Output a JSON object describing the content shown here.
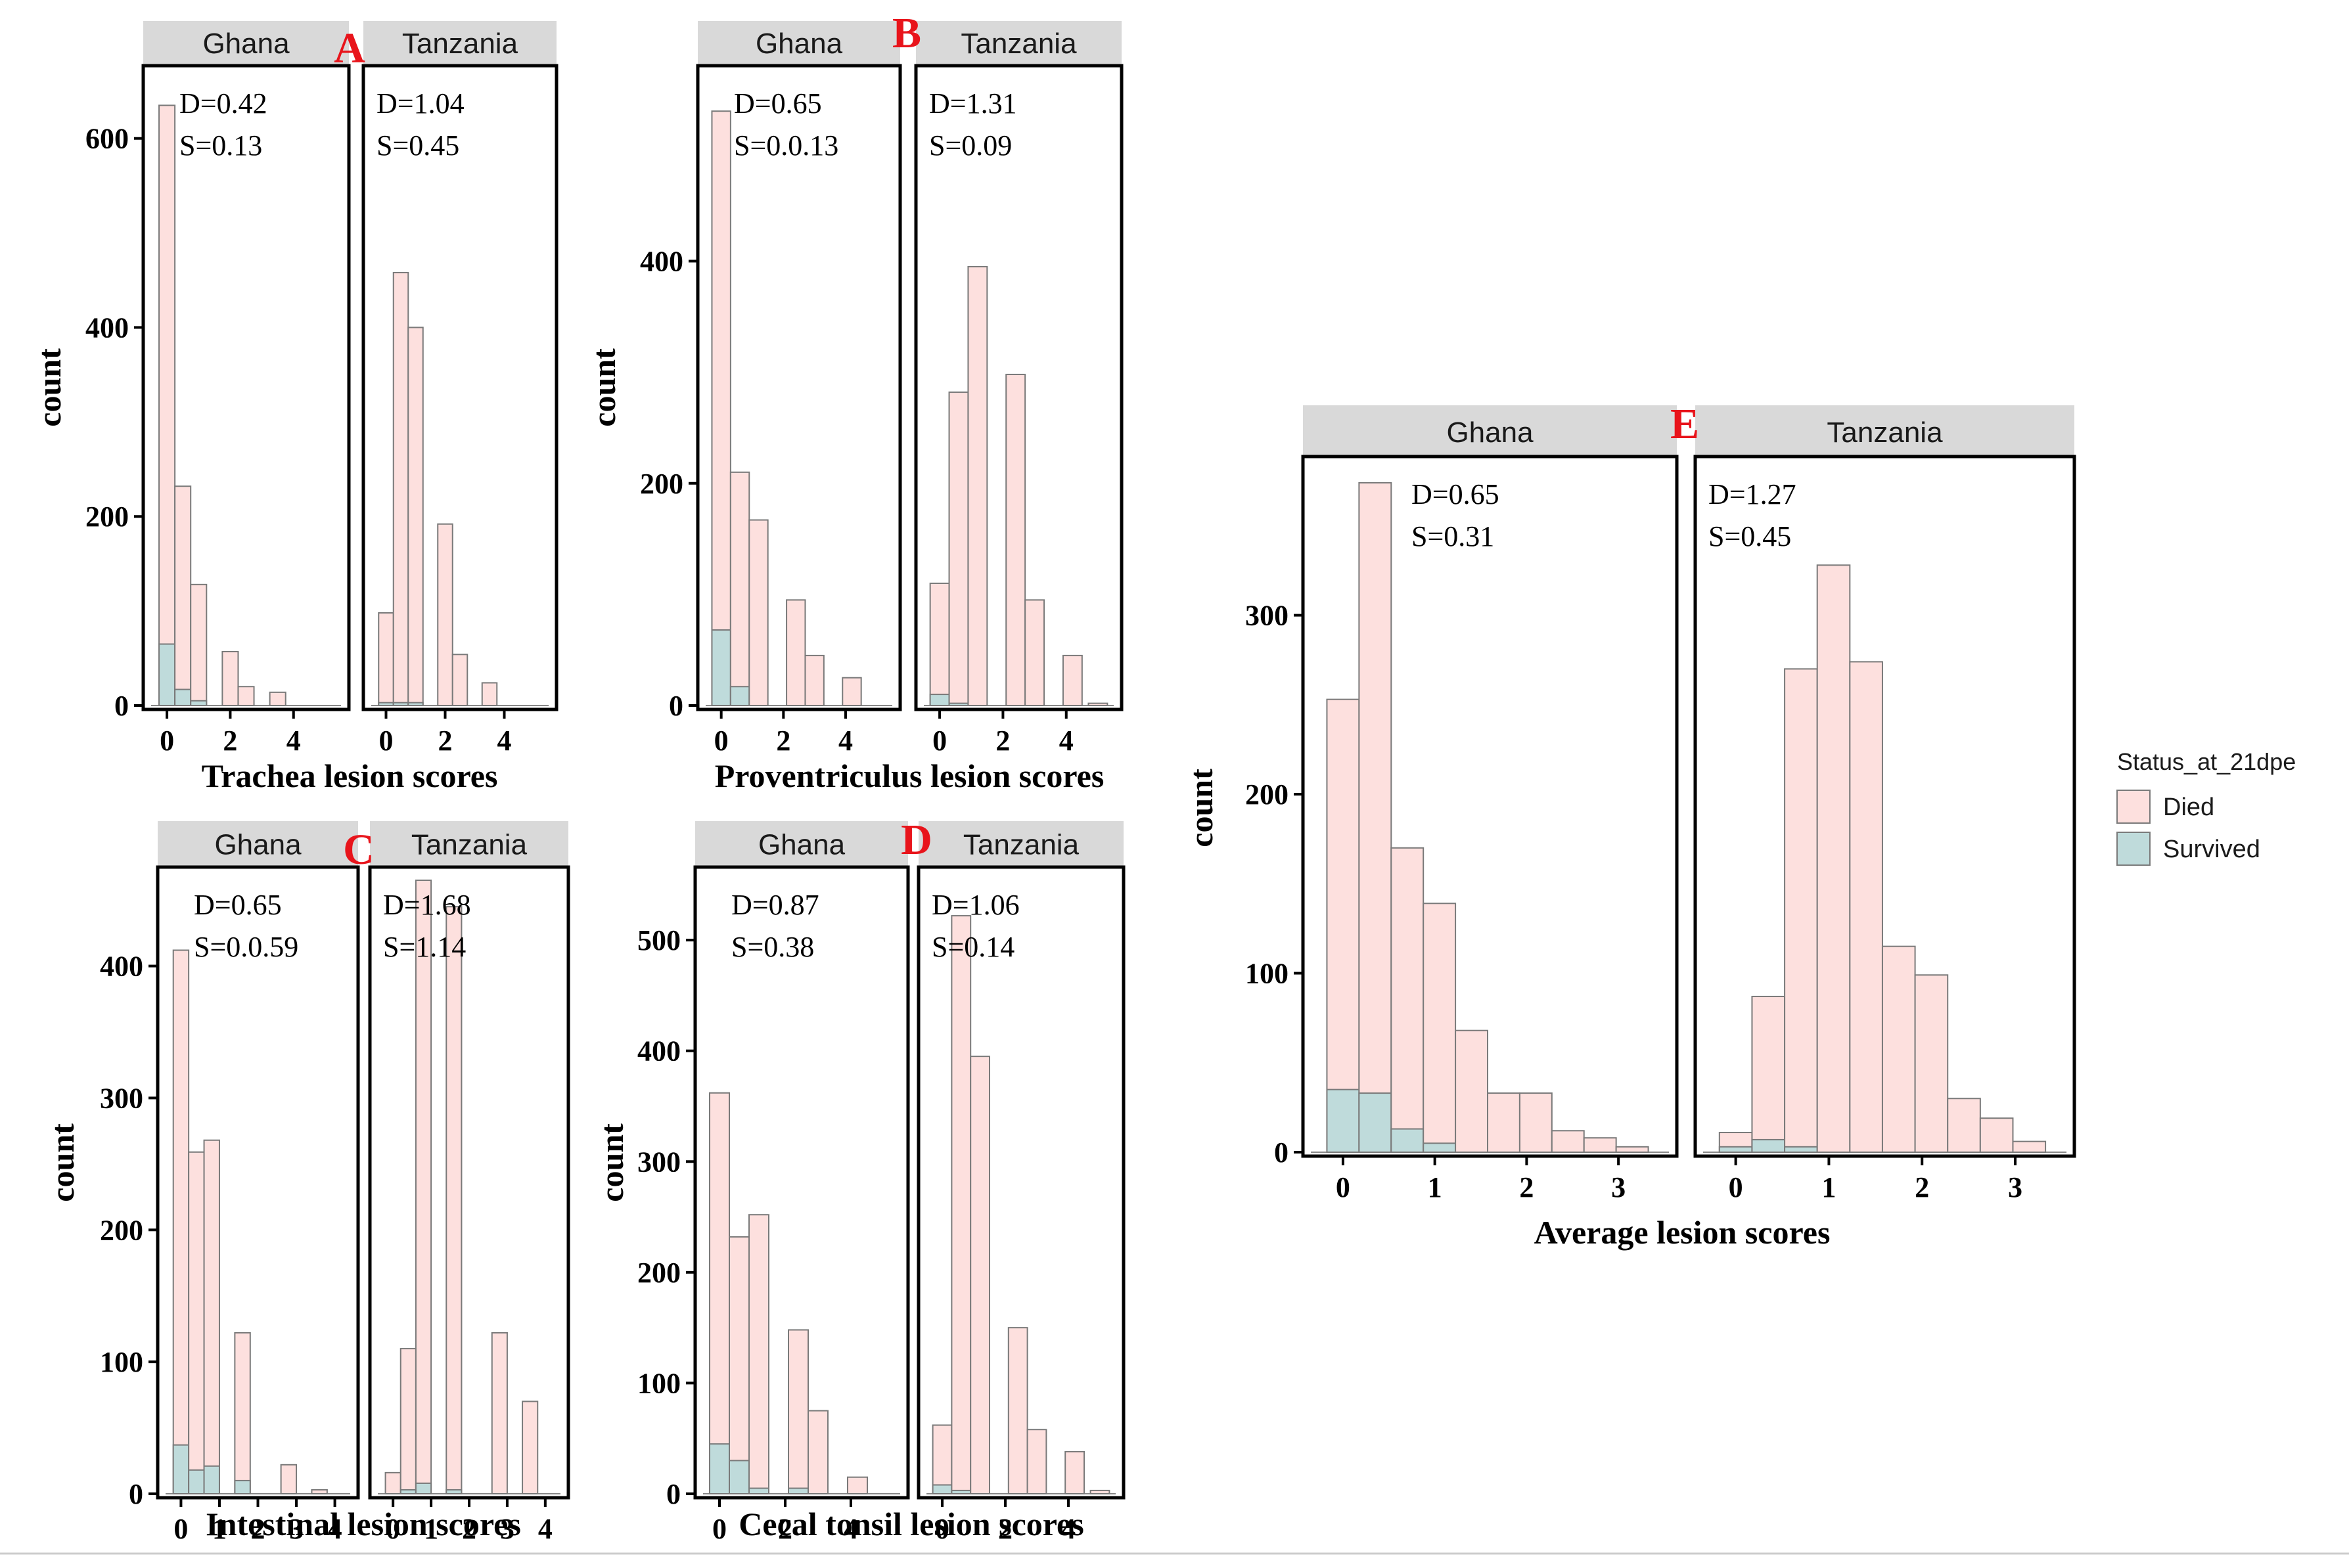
{
  "colors": {
    "died": "#fde0de",
    "survived": "#bfdbdb",
    "bar_stroke": "#7a7a7a",
    "strip": "#d9d9d9",
    "letter": "#e8141b",
    "frame": "#000000",
    "baseline": "#888888"
  },
  "legend": {
    "title": "Status_at_21dpe",
    "items": [
      {
        "label": "Died",
        "key": "died"
      },
      {
        "label": "Survived",
        "key": "survived"
      }
    ]
  },
  "chart_data": [
    {
      "id": "A",
      "letter": "A",
      "type": "bar",
      "stacked": true,
      "xlabel": "Trachea lesion scores",
      "ylabel": "count",
      "xlim": [
        -0.5,
        5.5
      ],
      "ylim": [
        0,
        670
      ],
      "xticks": [
        0,
        2,
        4
      ],
      "yticks": [
        0,
        200,
        400,
        600
      ],
      "bin_width": 0.5,
      "facets": [
        {
          "name": "Ghana",
          "annotation": [
            "D=0.42",
            "S=0.13"
          ],
          "x": [
            0,
            0.5,
            1,
            2,
            2.5,
            3.5
          ],
          "died": [
            635,
            232,
            128,
            57,
            20,
            14
          ],
          "survived": [
            65,
            17,
            5,
            0,
            0,
            0
          ]
        },
        {
          "name": "Tanzania",
          "annotation": [
            "D=1.04",
            "S=0.45"
          ],
          "x": [
            0,
            0.5,
            1,
            2,
            2.5,
            3.5
          ],
          "died": [
            98,
            458,
            400,
            192,
            54,
            24
          ],
          "survived": [
            3,
            3,
            3,
            0,
            0,
            0
          ]
        }
      ]
    },
    {
      "id": "B",
      "letter": "B",
      "type": "bar",
      "stacked": true,
      "xlabel": "Proventriculus lesion scores",
      "ylabel": "count",
      "xlim": [
        -0.5,
        5.5
      ],
      "ylim": [
        0,
        570
      ],
      "xticks": [
        0,
        2,
        4
      ],
      "yticks": [
        0,
        200,
        400
      ],
      "bin_width": 0.6,
      "facets": [
        {
          "name": "Ghana",
          "annotation": [
            "D=0.65",
            "S=0.0.13"
          ],
          "x": [
            0,
            0.6,
            1.2,
            2.4,
            3.0,
            4.2
          ],
          "died": [
            535,
            210,
            167,
            95,
            45,
            25
          ],
          "survived": [
            68,
            17,
            0,
            0,
            0,
            0
          ]
        },
        {
          "name": "Tanzania",
          "annotation": [
            "D=1.31",
            "S=0.09"
          ],
          "x": [
            0,
            0.6,
            1.2,
            2.4,
            3.0,
            4.2,
            5.0
          ],
          "died": [
            110,
            282,
            395,
            298,
            95,
            45,
            2
          ],
          "survived": [
            10,
            2,
            0,
            0,
            0,
            0,
            0
          ]
        }
      ]
    },
    {
      "id": "C",
      "letter": "C",
      "type": "bar",
      "stacked": true,
      "xlabel": "Intestinal lesion scores",
      "ylabel": "count",
      "xlim": [
        -0.4,
        4.4
      ],
      "ylim": [
        0,
        470
      ],
      "xticks": [
        0,
        1,
        2,
        3,
        4
      ],
      "yticks": [
        0,
        100,
        200,
        300,
        400
      ],
      "bin_width": 0.4,
      "facets": [
        {
          "name": "Ghana",
          "annotation": [
            "D=0.65",
            "S=0.0.59"
          ],
          "x": [
            0,
            0.4,
            0.8,
            1.6,
            2.8,
            3.6
          ],
          "died": [
            412,
            259,
            268,
            122,
            22,
            3
          ],
          "survived": [
            37,
            18,
            21,
            10,
            0,
            0
          ]
        },
        {
          "name": "Tanzania",
          "annotation": [
            "D=1.68",
            "S=1.14"
          ],
          "x": [
            0,
            0.4,
            0.8,
            1.6,
            2.8,
            3.6
          ],
          "died": [
            16,
            110,
            465,
            445,
            122,
            70
          ],
          "survived": [
            0,
            3,
            8,
            3,
            0,
            0
          ]
        }
      ]
    },
    {
      "id": "D",
      "letter": "D",
      "type": "bar",
      "stacked": true,
      "xlabel": "Cecal tonsil lesion scores",
      "ylabel": "count",
      "xlim": [
        -0.5,
        5.5
      ],
      "ylim": [
        0,
        560
      ],
      "xticks": [
        0,
        2,
        4
      ],
      "yticks": [
        0,
        100,
        200,
        300,
        400,
        500
      ],
      "bin_width": 0.6,
      "facets": [
        {
          "name": "Ghana",
          "annotation": [
            "D=0.87",
            "S=0.38"
          ],
          "x": [
            0,
            0.6,
            1.2,
            2.4,
            3.0,
            4.2
          ],
          "died": [
            362,
            232,
            252,
            148,
            75,
            15
          ],
          "survived": [
            45,
            30,
            5,
            5,
            0,
            0
          ]
        },
        {
          "name": "Tanzania",
          "annotation": [
            "D=1.06",
            "S=0.14"
          ],
          "x": [
            0,
            0.6,
            1.2,
            2.4,
            3.0,
            4.2,
            5.0
          ],
          "died": [
            62,
            522,
            395,
            150,
            58,
            38,
            3
          ],
          "survived": [
            8,
            3,
            0,
            0,
            0,
            0,
            0
          ]
        }
      ]
    },
    {
      "id": "E",
      "letter": "E",
      "type": "bar",
      "stacked": true,
      "xlabel": "Average lesion scores",
      "ylabel": "count",
      "xlim": [
        -0.35,
        3.55
      ],
      "ylim": [
        0,
        385
      ],
      "xticks": [
        0,
        1,
        2,
        3
      ],
      "yticks": [
        0,
        100,
        200,
        300
      ],
      "bin_width": 0.35,
      "facets": [
        {
          "name": "Ghana",
          "annotation": [
            "D=0.65",
            "S=0.31"
          ],
          "x": [
            0,
            0.35,
            0.7,
            1.05,
            1.4,
            1.75,
            2.1,
            2.45,
            2.8,
            3.15
          ],
          "died": [
            253,
            374,
            170,
            139,
            68,
            33,
            33,
            12,
            8,
            3
          ],
          "survived": [
            35,
            33,
            13,
            5,
            0,
            0,
            0,
            0,
            0,
            0
          ]
        },
        {
          "name": "Tanzania",
          "annotation": [
            "D=1.27",
            "S=0.45"
          ],
          "x": [
            0,
            0.35,
            0.7,
            1.05,
            1.4,
            1.75,
            2.1,
            2.45,
            2.8,
            3.15
          ],
          "died": [
            11,
            87,
            270,
            328,
            274,
            115,
            99,
            30,
            19,
            6
          ],
          "survived": [
            3,
            7,
            3,
            0,
            0,
            0,
            0,
            0,
            0,
            0
          ]
        }
      ]
    }
  ]
}
